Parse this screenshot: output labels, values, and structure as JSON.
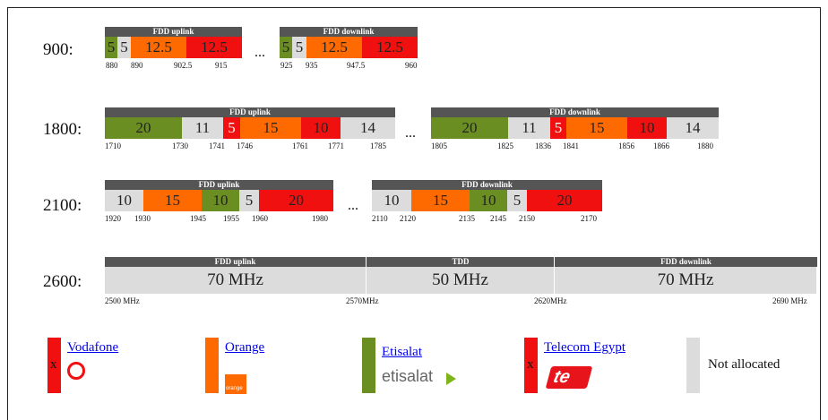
{
  "bands": [
    {
      "name": "900:",
      "separator": "...",
      "blocks": [
        {
          "title": "FDD uplink",
          "segments": [
            {
              "label": "5",
              "color": "#6b8e23"
            },
            {
              "label": "5",
              "color": "#dcdcdc"
            },
            {
              "label": "12.5",
              "color": "#ff6a00"
            },
            {
              "label": "12.5",
              "color": "#f01010"
            }
          ],
          "ticks": [
            "880",
            "890",
            "902.5",
            "915"
          ]
        },
        {
          "title": "FDD downlink",
          "segments": [
            {
              "label": "5",
              "color": "#6b8e23"
            },
            {
              "label": "5",
              "color": "#dcdcdc"
            },
            {
              "label": "12.5",
              "color": "#ff6a00"
            },
            {
              "label": "12.5",
              "color": "#f01010"
            }
          ],
          "ticks": [
            "925",
            "935",
            "947.5",
            "960"
          ]
        }
      ]
    },
    {
      "name": "1800:",
      "separator": "...",
      "blocks": [
        {
          "title": "FDD uplink",
          "segments": [
            {
              "label": "20",
              "color": "#6b8e23"
            },
            {
              "label": "11",
              "color": "#dcdcdc"
            },
            {
              "label": "5",
              "color": "#f01010"
            },
            {
              "label": "15",
              "color": "#ff6a00"
            },
            {
              "label": "10",
              "color": "#f01010"
            },
            {
              "label": "14",
              "color": "#dcdcdc"
            }
          ],
          "ticks": [
            "1710",
            "1730",
            "1741",
            "1746",
            "1761",
            "1771",
            "1785"
          ]
        },
        {
          "title": "FDD downlink",
          "segments": [
            {
              "label": "20",
              "color": "#6b8e23"
            },
            {
              "label": "11",
              "color": "#dcdcdc"
            },
            {
              "label": "5",
              "color": "#f01010"
            },
            {
              "label": "15",
              "color": "#ff6a00"
            },
            {
              "label": "10",
              "color": "#f01010"
            },
            {
              "label": "14",
              "color": "#dcdcdc"
            }
          ],
          "ticks": [
            "1805",
            "1825",
            "1836",
            "1841",
            "1856",
            "1866",
            "1880"
          ]
        }
      ]
    },
    {
      "name": "2100:",
      "separator": "...",
      "blocks": [
        {
          "title": "FDD uplink",
          "segments": [
            {
              "label": "10",
              "color": "#dcdcdc"
            },
            {
              "label": "15",
              "color": "#ff6a00"
            },
            {
              "label": "10",
              "color": "#6b8e23"
            },
            {
              "label": "5",
              "color": "#dcdcdc"
            },
            {
              "label": "20",
              "color": "#f01010"
            }
          ],
          "ticks": [
            "1920",
            "1930",
            "1945",
            "1955",
            "1960",
            "1980"
          ]
        },
        {
          "title": "FDD downlink",
          "segments": [
            {
              "label": "10",
              "color": "#dcdcdc"
            },
            {
              "label": "15",
              "color": "#ff6a00"
            },
            {
              "label": "10",
              "color": "#6b8e23"
            },
            {
              "label": "5",
              "color": "#dcdcdc"
            },
            {
              "label": "20",
              "color": "#f01010"
            }
          ],
          "ticks": [
            "2110",
            "2120",
            "2135",
            "2145",
            "2150",
            "2170"
          ]
        }
      ]
    },
    {
      "name": "2600:",
      "blocks": [
        {
          "title": "FDD uplink",
          "segments": [
            {
              "label": "70 MHz",
              "color": "#dcdcdc"
            }
          ],
          "ticks": [
            "2500 MHz"
          ]
        },
        {
          "title": "TDD",
          "segments": [
            {
              "label": "50 MHz",
              "color": "#dcdcdc"
            }
          ],
          "ticks": [
            "2570MHz"
          ]
        },
        {
          "title": "FDD downlink",
          "segments": [
            {
              "label": "70 MHz",
              "color": "#dcdcdc"
            }
          ],
          "ticks": [
            "2620MHz",
            "2690 MHz"
          ]
        }
      ]
    }
  ],
  "legend": [
    {
      "name": "Vodafone",
      "color": "#f01010",
      "marker": "x"
    },
    {
      "name": "Orange",
      "color": "#ff6a00",
      "logo_text": "orange"
    },
    {
      "name": "Etisalat",
      "color": "#6b8e23",
      "logo_text": "etisalat"
    },
    {
      "name": "Telecom Egypt",
      "color": "#f01010",
      "marker": "x",
      "logo_text": "te"
    },
    {
      "name": "Not allocated",
      "color": "#dcdcdc"
    }
  ]
}
